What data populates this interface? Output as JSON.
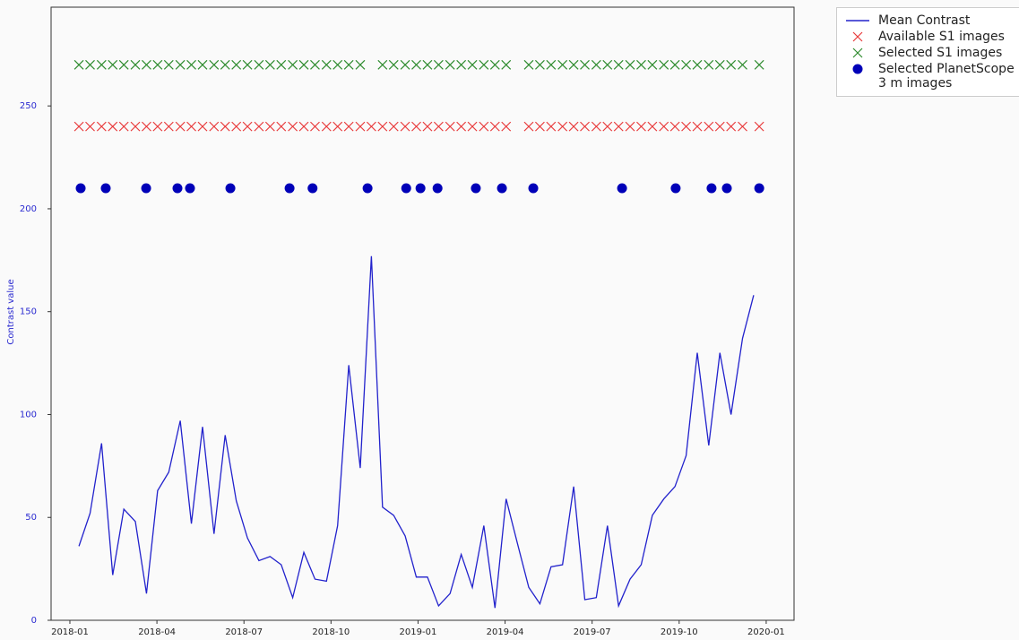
{
  "chart_data": {
    "type": "line",
    "ylabel": "Contrast value",
    "xlim": [
      2017.946,
      2020.08
    ],
    "xticks": [
      {
        "value": 2018.0,
        "label": "2018-01"
      },
      {
        "value": 2018.25,
        "label": "2018-04"
      },
      {
        "value": 2018.5,
        "label": "2018-07"
      },
      {
        "value": 2018.75,
        "label": "2018-10"
      },
      {
        "value": 2019.0,
        "label": "2019-01"
      },
      {
        "value": 2019.25,
        "label": "2019-04"
      },
      {
        "value": 2019.5,
        "label": "2019-07"
      },
      {
        "value": 2019.75,
        "label": "2019-10"
      },
      {
        "value": 2020.0,
        "label": "2020-01"
      }
    ],
    "ylim": [
      0,
      298
    ],
    "yticks": [
      0,
      50,
      100,
      150,
      200,
      250
    ],
    "legend": "outside upper right",
    "series": [
      {
        "name": "Mean Contrast",
        "type": "line",
        "color": "#2222cc",
        "x": [
          2018.026,
          2018.058,
          2018.091,
          2018.123,
          2018.155,
          2018.188,
          2018.22,
          2018.252,
          2018.284,
          2018.317,
          2018.349,
          2018.381,
          2018.414,
          2018.446,
          2018.478,
          2018.51,
          2018.543,
          2018.575,
          2018.607,
          2018.64,
          2018.672,
          2018.704,
          2018.737,
          2018.769,
          2018.801,
          2018.834,
          2018.866,
          2018.898,
          2018.93,
          2018.963,
          2018.995,
          2019.027,
          2019.059,
          2019.092,
          2019.124,
          2019.156,
          2019.189,
          2019.221,
          2019.253,
          2019.286,
          2019.318,
          2019.35,
          2019.382,
          2019.415,
          2019.447,
          2019.479,
          2019.512,
          2019.544,
          2019.576,
          2019.609,
          2019.641,
          2019.673,
          2019.706,
          2019.738,
          2019.77,
          2019.802,
          2019.835,
          2019.867,
          2019.899,
          2019.932,
          2019.964
        ],
        "values": [
          36,
          52,
          86,
          22,
          54,
          48,
          13,
          63,
          72,
          97,
          47,
          94,
          42,
          90,
          58,
          40,
          29,
          31,
          27,
          11,
          33,
          20,
          19,
          46,
          124,
          74,
          177,
          55,
          51,
          41,
          21,
          21,
          7,
          13,
          32,
          16,
          46,
          6,
          59,
          37,
          16,
          8,
          26,
          27,
          65,
          10,
          11,
          46,
          7,
          20,
          27,
          51,
          59,
          65,
          80,
          130,
          85,
          130,
          100,
          137,
          158
        ]
      },
      {
        "name": "Available S1 images",
        "type": "scatter",
        "marker": "x",
        "color": "#e8393a",
        "x": [
          2018.026,
          2018.058,
          2018.091,
          2018.123,
          2018.155,
          2018.188,
          2018.22,
          2018.252,
          2018.284,
          2018.317,
          2018.349,
          2018.381,
          2018.414,
          2018.446,
          2018.478,
          2018.51,
          2018.543,
          2018.575,
          2018.607,
          2018.64,
          2018.672,
          2018.704,
          2018.737,
          2018.769,
          2018.801,
          2018.834,
          2018.866,
          2018.898,
          2018.93,
          2018.963,
          2018.995,
          2019.027,
          2019.059,
          2019.092,
          2019.124,
          2019.156,
          2019.189,
          2019.221,
          2019.253,
          2019.318,
          2019.35,
          2019.382,
          2019.415,
          2019.447,
          2019.479,
          2019.512,
          2019.544,
          2019.576,
          2019.609,
          2019.641,
          2019.673,
          2019.706,
          2019.738,
          2019.77,
          2019.802,
          2019.835,
          2019.867,
          2019.899,
          2019.932,
          2019.98
        ],
        "values": [
          240,
          240,
          240,
          240,
          240,
          240,
          240,
          240,
          240,
          240,
          240,
          240,
          240,
          240,
          240,
          240,
          240,
          240,
          240,
          240,
          240,
          240,
          240,
          240,
          240,
          240,
          240,
          240,
          240,
          240,
          240,
          240,
          240,
          240,
          240,
          240,
          240,
          240,
          240,
          240,
          240,
          240,
          240,
          240,
          240,
          240,
          240,
          240,
          240,
          240,
          240,
          240,
          240,
          240,
          240,
          240,
          240,
          240,
          240,
          240
        ]
      },
      {
        "name": "Selected S1 images",
        "type": "scatter",
        "marker": "x",
        "color": "#2e8b2e",
        "x": [
          2018.026,
          2018.058,
          2018.091,
          2018.123,
          2018.155,
          2018.188,
          2018.22,
          2018.252,
          2018.284,
          2018.317,
          2018.349,
          2018.381,
          2018.414,
          2018.446,
          2018.478,
          2018.51,
          2018.543,
          2018.575,
          2018.607,
          2018.64,
          2018.672,
          2018.704,
          2018.737,
          2018.769,
          2018.801,
          2018.834,
          2018.898,
          2018.93,
          2018.963,
          2018.995,
          2019.027,
          2019.059,
          2019.092,
          2019.124,
          2019.156,
          2019.189,
          2019.221,
          2019.253,
          2019.318,
          2019.35,
          2019.382,
          2019.415,
          2019.447,
          2019.479,
          2019.512,
          2019.544,
          2019.576,
          2019.609,
          2019.641,
          2019.673,
          2019.706,
          2019.738,
          2019.77,
          2019.802,
          2019.835,
          2019.867,
          2019.899,
          2019.932,
          2019.98
        ],
        "values": [
          270,
          270,
          270,
          270,
          270,
          270,
          270,
          270,
          270,
          270,
          270,
          270,
          270,
          270,
          270,
          270,
          270,
          270,
          270,
          270,
          270,
          270,
          270,
          270,
          270,
          270,
          270,
          270,
          270,
          270,
          270,
          270,
          270,
          270,
          270,
          270,
          270,
          270,
          270,
          270,
          270,
          270,
          270,
          270,
          270,
          270,
          270,
          270,
          270,
          270,
          270,
          270,
          270,
          270,
          270,
          270,
          270,
          270,
          270
        ]
      },
      {
        "name": "Selected PlanetScope\n3 m images",
        "type": "scatter",
        "marker": "o",
        "color": "#0000b8",
        "x": [
          2018.031,
          2018.103,
          2018.219,
          2018.309,
          2018.345,
          2018.461,
          2018.631,
          2018.697,
          2018.855,
          2018.966,
          2019.007,
          2019.056,
          2019.166,
          2019.241,
          2019.331,
          2019.586,
          2019.74,
          2019.843,
          2019.887,
          2019.98
        ],
        "values": [
          210,
          210,
          210,
          210,
          210,
          210,
          210,
          210,
          210,
          210,
          210,
          210,
          210,
          210,
          210,
          210,
          210,
          210,
          210,
          210
        ]
      }
    ]
  }
}
